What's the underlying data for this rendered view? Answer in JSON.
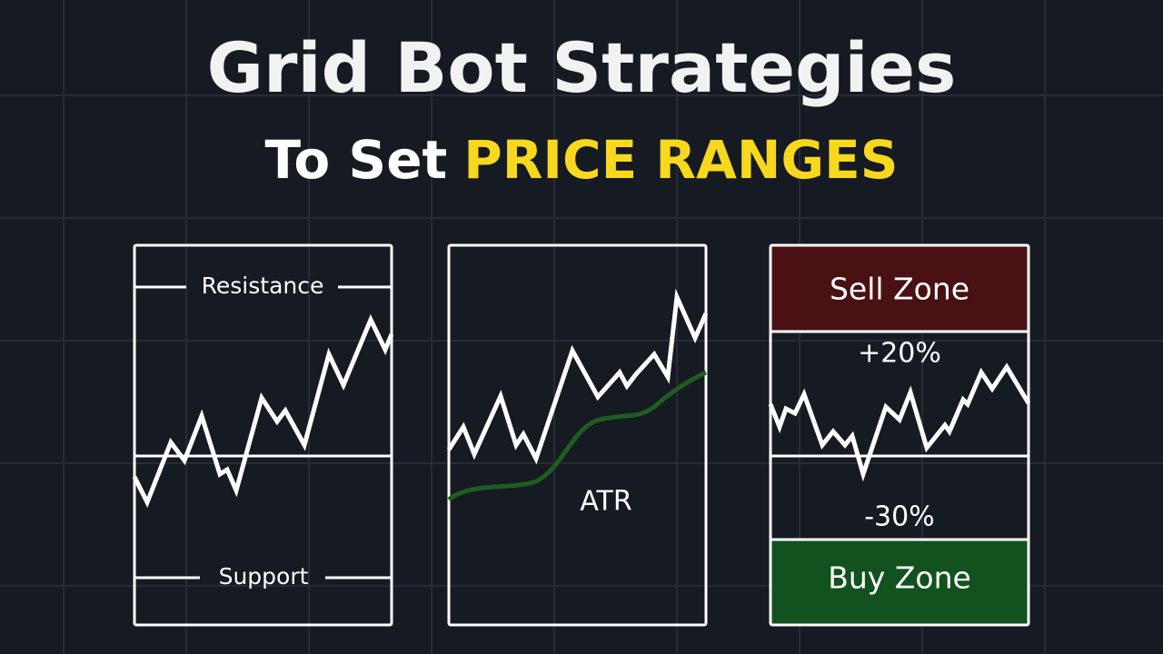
{
  "header": {
    "title": "Grid Bot Strategies",
    "subtitle": "To Set",
    "highlight": "PRICE RANGES"
  },
  "panels": [
    {
      "resistance": "Resistance",
      "support": "Support"
    },
    {
      "indicator": "ATR"
    },
    {
      "sell_zone": "Sell Zone",
      "upper_pct": "+20%",
      "lower_pct": "-30%",
      "buy_zone": "Buy Zone"
    }
  ]
}
